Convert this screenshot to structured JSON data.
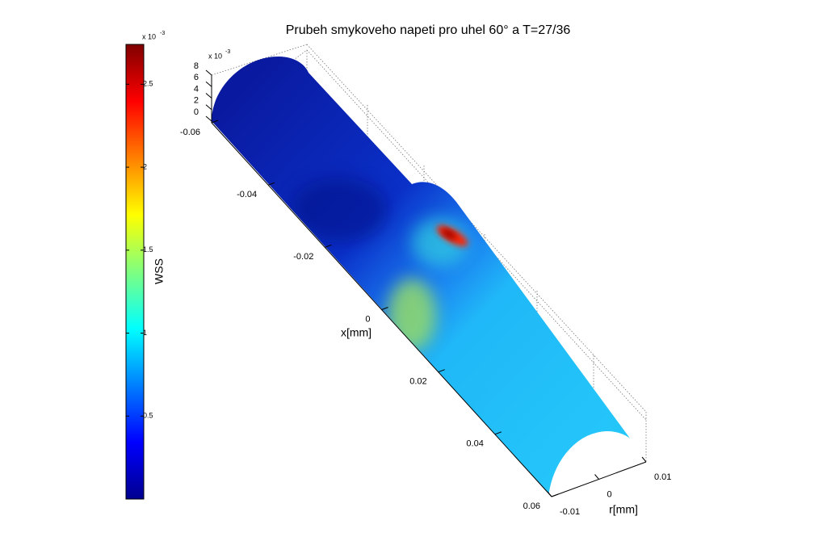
{
  "chart_data": {
    "type": "surface",
    "title": "Prubeh smykoveho napeti pro uhel 60° a T=27/36",
    "colorbar": {
      "label": "WSS",
      "exponent_base": "x 10",
      "exponent_power": "-3",
      "clim": [
        0,
        2.74
      ],
      "ticks": [
        0.5,
        1,
        1.5,
        2,
        2.5
      ]
    },
    "xlabel": "x[mm]",
    "xlim": [
      -0.06,
      0.06
    ],
    "xticks": [
      -0.06,
      -0.04,
      -0.02,
      0,
      0.02,
      0.04,
      0.06
    ],
    "ylabel": "r[mm]",
    "ylim": [
      -0.01,
      0.01
    ],
    "yticks": [
      -0.01,
      0,
      0.01
    ],
    "zexponent_base": "x 10",
    "zexponent_power": "-3",
    "zlim": [
      0,
      8
    ],
    "zticks": [
      0,
      2,
      4,
      6,
      8
    ]
  }
}
